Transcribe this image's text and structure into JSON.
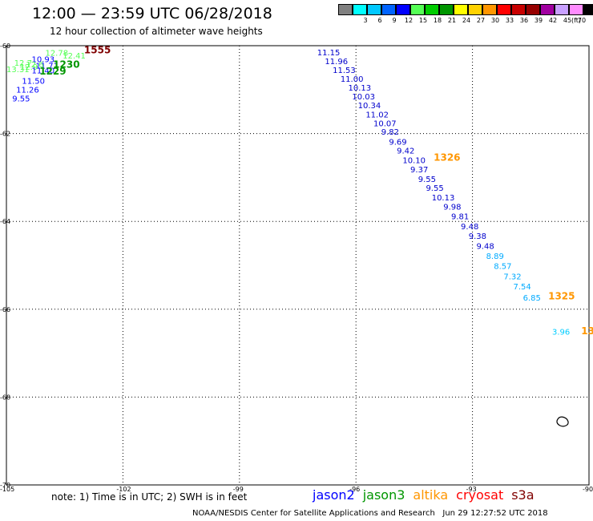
{
  "header": {
    "title": "12:00 — 23:59 UTC 06/28/2018",
    "subtitle": "12 hour collection of altimeter wave heights"
  },
  "colorbar": {
    "cells": [
      {
        "color": "#808080",
        "label": ""
      },
      {
        "color": "#00ffff",
        "label": "3"
      },
      {
        "color": "#00c8ff",
        "label": "6"
      },
      {
        "color": "#0064ff",
        "label": "9"
      },
      {
        "color": "#0000ff",
        "label": "12"
      },
      {
        "color": "#55ff55",
        "label": "15"
      },
      {
        "color": "#00cc00",
        "label": "18"
      },
      {
        "color": "#009600",
        "label": "21"
      },
      {
        "color": "#ffff00",
        "label": "24"
      },
      {
        "color": "#ffd200",
        "label": "27"
      },
      {
        "color": "#ff9600",
        "label": "30"
      },
      {
        "color": "#ff0000",
        "label": "33"
      },
      {
        "color": "#c80000",
        "label": "36"
      },
      {
        "color": "#960000",
        "label": "39"
      },
      {
        "color": "#a000a0",
        "label": "42"
      },
      {
        "color": "#c8a0ff",
        "label": "45"
      },
      {
        "color": "#ff8cff",
        "label": "70"
      },
      {
        "color": "#000000",
        "label": ""
      }
    ],
    "unit": "(ft)"
  },
  "axes": {
    "lon_ticks": [
      "-105",
      "-102",
      "-99",
      "-96",
      "-93",
      "-90"
    ],
    "lat_ticks": [
      "-60",
      "-62",
      "-64",
      "-66",
      "-68",
      "-70"
    ],
    "lon_range": [
      -105,
      -90
    ],
    "lat_range": [
      -60,
      -70
    ]
  },
  "observations": [
    {
      "lon": -104.0,
      "lat": -60.23,
      "text": "12.78",
      "color": "#55ff55"
    },
    {
      "lon": -103.55,
      "lat": -60.29,
      "text": "12.41",
      "color": "#55ff55"
    },
    {
      "lon": -104.35,
      "lat": -60.37,
      "text": "10.93",
      "color": "#0000ff"
    },
    {
      "lon": -104.25,
      "lat": -60.52,
      "text": "11.71",
      "color": "#0000ff"
    },
    {
      "lon": -104.8,
      "lat": -60.46,
      "text": "12.7",
      "color": "#55ff55"
    },
    {
      "lon": -104.5,
      "lat": -60.49,
      "text": "12.6",
      "color": "#55ff55"
    },
    {
      "lon": -104.65,
      "lat": -60.55,
      "text": "12.9",
      "color": "#55ff55"
    },
    {
      "lon": -105.0,
      "lat": -60.6,
      "text": "13.31",
      "color": "#55ff55"
    },
    {
      "lon": -104.35,
      "lat": -60.63,
      "text": "11.40",
      "color": "#0000ff"
    },
    {
      "lon": -104.6,
      "lat": -60.87,
      "text": "11.50",
      "color": "#0000ff"
    },
    {
      "lon": -104.75,
      "lat": -61.07,
      "text": "11.26",
      "color": "#0000ff"
    },
    {
      "lon": -104.85,
      "lat": -61.27,
      "text": "9.55",
      "color": "#0000ff"
    },
    {
      "lon": -97.0,
      "lat": -60.22,
      "text": "11.15",
      "color": "#0000cc"
    },
    {
      "lon": -96.8,
      "lat": -60.42,
      "text": "11.96",
      "color": "#0000cc"
    },
    {
      "lon": -96.6,
      "lat": -60.62,
      "text": "11.53",
      "color": "#0000cc"
    },
    {
      "lon": -96.4,
      "lat": -60.82,
      "text": "11.00",
      "color": "#0000cc"
    },
    {
      "lon": -96.2,
      "lat": -61.02,
      "text": "10.13",
      "color": "#0000cc"
    },
    {
      "lon": -96.1,
      "lat": -61.22,
      "text": "10.03",
      "color": "#0000cc"
    },
    {
      "lon": -95.95,
      "lat": -61.42,
      "text": "10.34",
      "color": "#0000cc"
    },
    {
      "lon": -95.75,
      "lat": -61.63,
      "text": "11.02",
      "color": "#0000cc"
    },
    {
      "lon": -95.55,
      "lat": -61.83,
      "text": "10.07",
      "color": "#0000cc"
    },
    {
      "lon": -95.35,
      "lat": -62.03,
      "text": "9.82",
      "color": "#0000cc"
    },
    {
      "lon": -95.15,
      "lat": -62.25,
      "text": "9.69",
      "color": "#0000cc"
    },
    {
      "lon": -94.95,
      "lat": -62.45,
      "text": "9.42",
      "color": "#0000cc"
    },
    {
      "lon": -94.8,
      "lat": -62.67,
      "text": "10.10",
      "color": "#0000cc"
    },
    {
      "lon": -94.6,
      "lat": -62.88,
      "text": "9.37",
      "color": "#0000cc"
    },
    {
      "lon": -94.4,
      "lat": -63.1,
      "text": "9.55",
      "color": "#0000cc"
    },
    {
      "lon": -94.2,
      "lat": -63.3,
      "text": "9.55",
      "color": "#0000cc"
    },
    {
      "lon": -94.05,
      "lat": -63.52,
      "text": "10.13",
      "color": "#0000cc"
    },
    {
      "lon": -93.75,
      "lat": -63.73,
      "text": "9.98",
      "color": "#0000cc"
    },
    {
      "lon": -93.55,
      "lat": -63.95,
      "text": "9.81",
      "color": "#0000cc"
    },
    {
      "lon": -93.3,
      "lat": -64.18,
      "text": "9.48",
      "color": "#0000cc"
    },
    {
      "lon": -93.1,
      "lat": -64.4,
      "text": "9.38",
      "color": "#0000cc"
    },
    {
      "lon": -92.9,
      "lat": -64.63,
      "text": "9.48",
      "color": "#0000cc"
    },
    {
      "lon": -92.65,
      "lat": -64.85,
      "text": "8.89",
      "color": "#00aaff"
    },
    {
      "lon": -92.45,
      "lat": -65.08,
      "text": "8.57",
      "color": "#00aaff"
    },
    {
      "lon": -92.2,
      "lat": -65.32,
      "text": "7.32",
      "color": "#00aaff"
    },
    {
      "lon": -91.95,
      "lat": -65.55,
      "text": "7.54",
      "color": "#00aaff"
    },
    {
      "lon": -91.7,
      "lat": -65.8,
      "text": "6.85",
      "color": "#00aaff"
    },
    {
      "lon": -90.95,
      "lat": -66.58,
      "text": "3.96",
      "color": "#00ccff"
    }
  ],
  "pass_labels": [
    {
      "lon": -103.0,
      "lat": -60.17,
      "text": "1555",
      "color": "#800000"
    },
    {
      "lon": -103.8,
      "lat": -60.5,
      "text": "1230",
      "color": "#009600"
    },
    {
      "lon": -104.15,
      "lat": -60.66,
      "text": "1229",
      "color": "#009600"
    },
    {
      "lon": -94.0,
      "lat": -62.62,
      "text": "1326",
      "color": "#ff9600"
    },
    {
      "lon": -91.05,
      "lat": -65.78,
      "text": "1325",
      "color": "#ff9600"
    },
    {
      "lon": -90.2,
      "lat": -66.57,
      "text": "13",
      "color": "#ff9600"
    }
  ],
  "footnote": "note: 1) Time is in UTC; 2) SWH is in feet",
  "legend": [
    {
      "label": "jason2",
      "color": "#0000ff"
    },
    {
      "label": "jason3",
      "color": "#009600"
    },
    {
      "label": "altika",
      "color": "#ff9600"
    },
    {
      "label": "cryosat",
      "color": "#ff0000"
    },
    {
      "label": "s3a",
      "color": "#800000"
    }
  ],
  "credit": "NOAA/NESDIS Center for Satellite Applications and Research   Jun 29 12:27:52 UTC 2018"
}
